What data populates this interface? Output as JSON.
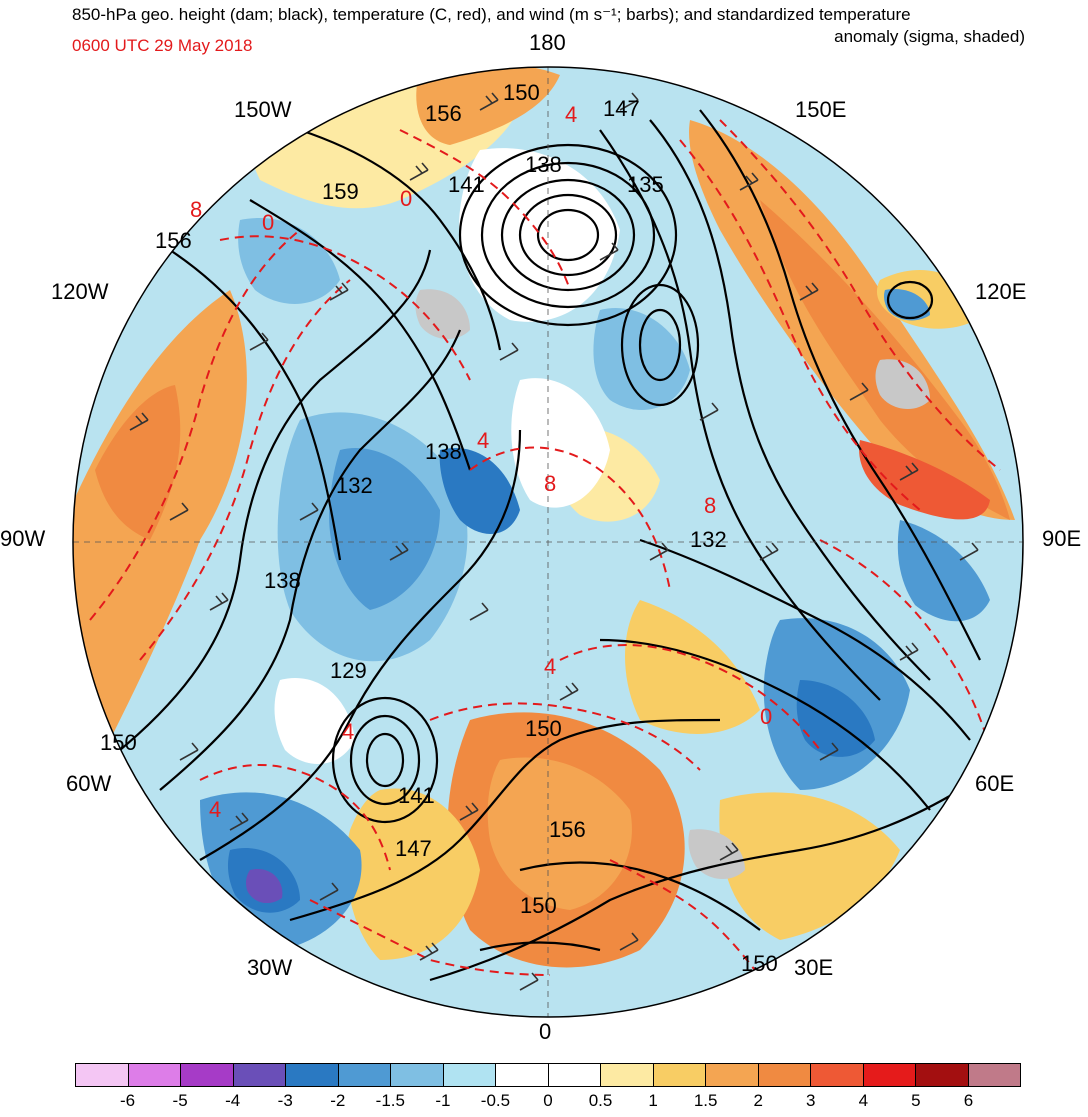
{
  "title": {
    "line1": "850-hPa geo. height (dam; black), temperature (C, red), and wind (m s⁻¹; barbs); and standardized temperature",
    "line2": "anomaly (sigma, shaded)",
    "valid_time": "0600 UTC 29 May 2018"
  },
  "longitude_labels": {
    "lon_180": "180",
    "lon_150w": "150W",
    "lon_150e": "150E",
    "lon_120w": "120W",
    "lon_120e": "120E",
    "lon_90w": "90W",
    "lon_90e": "90E",
    "lon_60w": "60W",
    "lon_60e": "60E",
    "lon_30w": "30W",
    "lon_30e": "30E",
    "lon_0": "0"
  },
  "height_contour_labels": [
    "156",
    "150",
    "147",
    "138",
    "141",
    "135",
    "159",
    "156",
    "138",
    "132",
    "132",
    "138",
    "129",
    "150",
    "141",
    "150",
    "147",
    "156",
    "150",
    "150"
  ],
  "temperature_contour_labels": [
    "4",
    "8",
    "0",
    "4",
    "8",
    "8",
    "4",
    "4",
    "0",
    "4",
    "0"
  ],
  "colorbar": {
    "colors": [
      "#f4c6f4",
      "#dd7de8",
      "#a63bc7",
      "#6a4fb8",
      "#2a79c2",
      "#4f9ad3",
      "#7fbfe3",
      "#b0e3f2",
      "#ffffff",
      "#ffffff",
      "#fdeaa3",
      "#f8cd64",
      "#f4a552",
      "#f08a41",
      "#ee5935",
      "#e51b1b",
      "#a30f10",
      "#c07a89"
    ],
    "tick_labels": [
      "-6",
      "-5",
      "-4",
      "-3",
      "-2",
      "-1.5",
      "-1",
      "-0.5",
      "0",
      "0.5",
      "1",
      "1.5",
      "2",
      "3",
      "4",
      "5",
      "6"
    ]
  },
  "map_style": {
    "height_contour_color": "#000000",
    "temperature_contour_color": "#e31a1c",
    "barb_color": "#333333",
    "land_color": "#c8c8c8"
  }
}
